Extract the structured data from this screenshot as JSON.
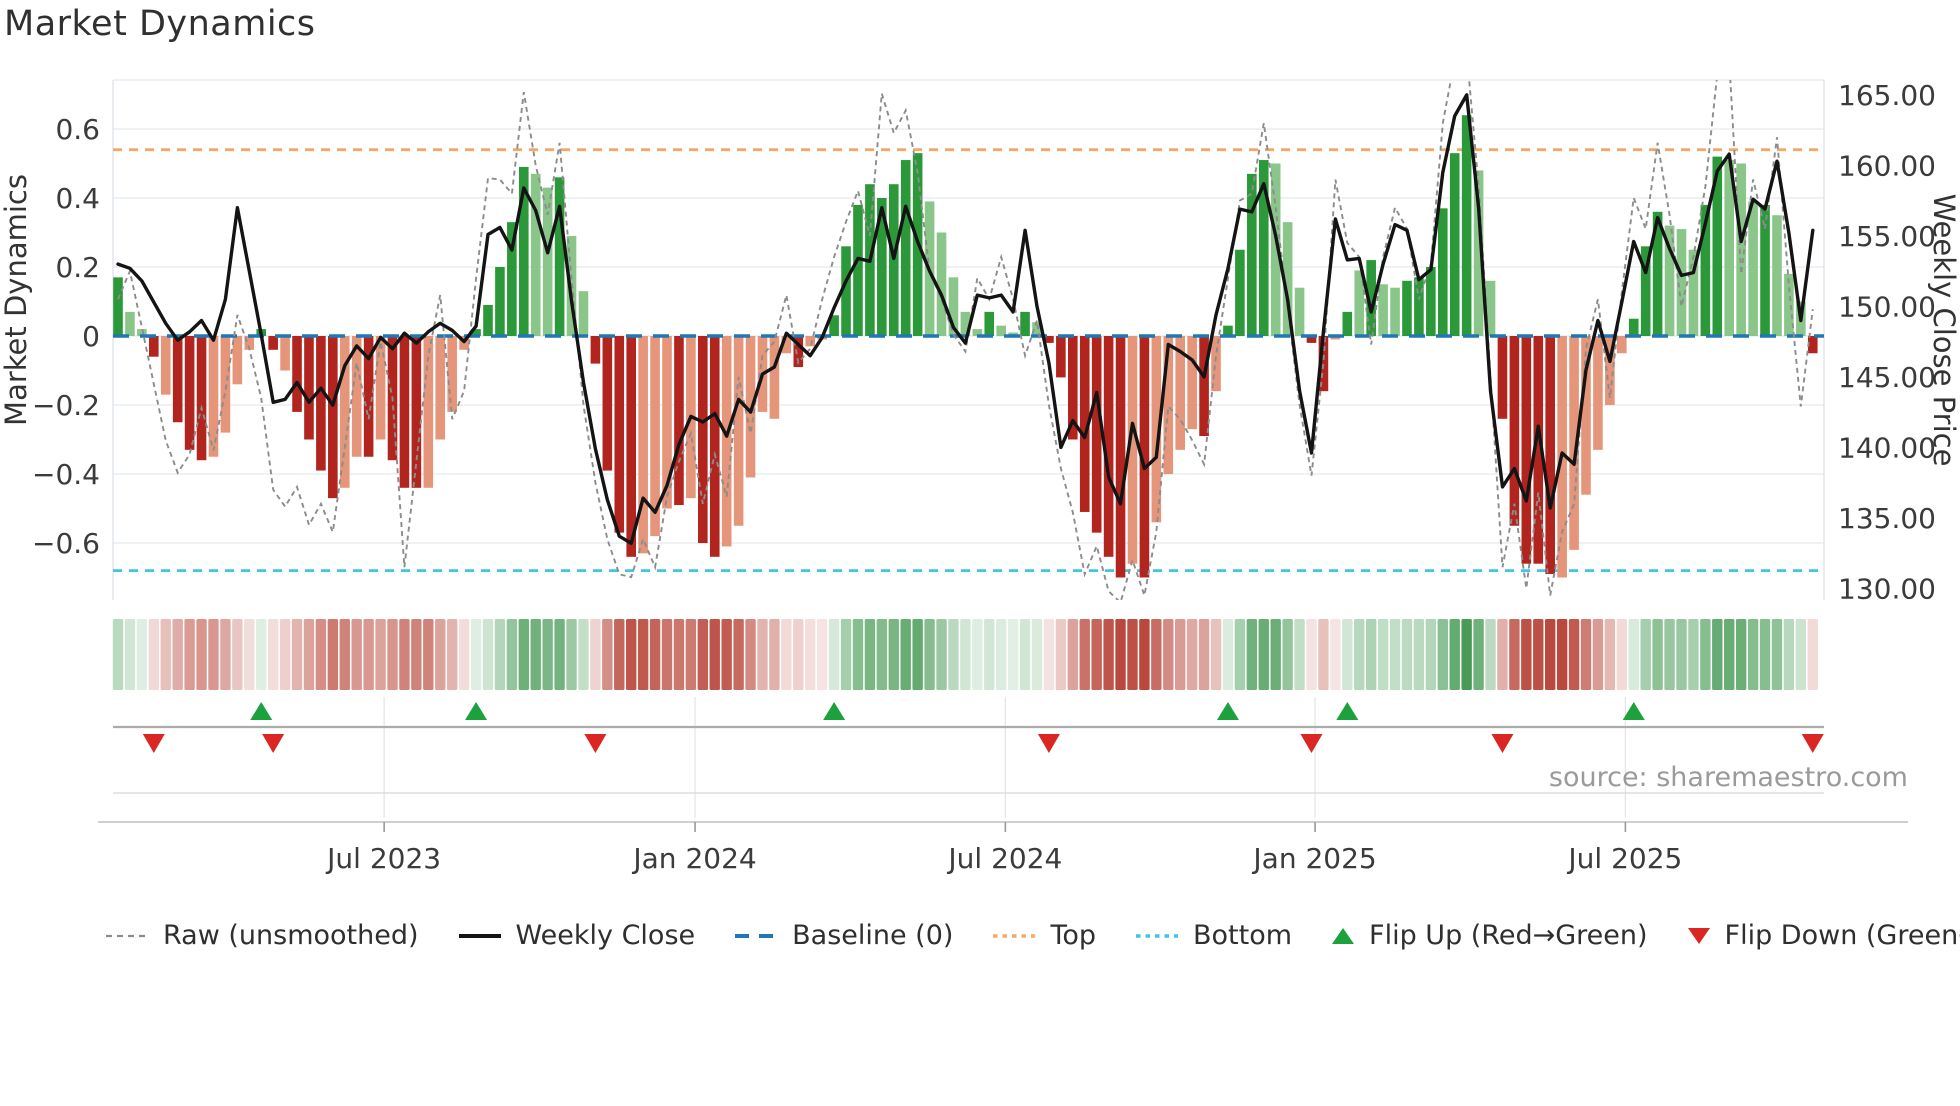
{
  "chart_data": {
    "type": "bar",
    "title": "Market Dynamics",
    "ylabel_left": "Market Dynamics",
    "ylabel_right": "Weekly Close Price",
    "source": "source: sharemaestro.com",
    "x_tick_labels": [
      "Jul 2023",
      "Jan 2024",
      "Jul 2024",
      "Jan 2025",
      "Jul 2025"
    ],
    "x_tick_weeks": [
      22.3,
      48.35,
      74.35,
      100.3,
      126.3
    ],
    "y_ticks_left": [
      0.6,
      0.4,
      0.2,
      0,
      -0.2,
      -0.4,
      -0.6
    ],
    "y_tick_labels_left": [
      "0.6",
      "0.4",
      "0.2",
      "0",
      "−0.2",
      "−0.4",
      "−0.6"
    ],
    "y_ticks_right": [
      165,
      160,
      155,
      150,
      145,
      140,
      135,
      130
    ],
    "y_tick_labels_right": [
      "165.00",
      "160.00",
      "155.00",
      "150.00",
      "145.00",
      "140.00",
      "135.00",
      "130.00"
    ],
    "baseline": 0,
    "top_line": 0.54,
    "bottom_line": -0.68,
    "left_axis_range": [
      -0.75,
      0.75
    ],
    "right_axis_range": [
      129.2,
      166.1
    ],
    "weeks": 143,
    "oscillator": [
      0.17,
      0.07,
      0.02,
      -0.06,
      -0.17,
      -0.25,
      -0.33,
      -0.36,
      -0.35,
      -0.28,
      -0.14,
      -0.04,
      0.02,
      -0.04,
      -0.1,
      -0.22,
      -0.3,
      -0.39,
      -0.47,
      -0.44,
      -0.35,
      -0.35,
      -0.3,
      -0.36,
      -0.44,
      -0.44,
      -0.44,
      -0.3,
      -0.22,
      -0.04,
      0.02,
      0.09,
      0.2,
      0.33,
      0.49,
      0.47,
      0.43,
      0.46,
      0.29,
      0.13,
      -0.08,
      -0.39,
      -0.57,
      -0.64,
      -0.63,
      -0.58,
      -0.5,
      -0.49,
      -0.47,
      -0.6,
      -0.64,
      -0.61,
      -0.55,
      -0.41,
      -0.22,
      -0.24,
      -0.05,
      -0.09,
      -0.03,
      -0.01,
      0.06,
      0.26,
      0.38,
      0.44,
      0.4,
      0.44,
      0.51,
      0.53,
      0.39,
      0.3,
      0.17,
      0.07,
      0.02,
      0.07,
      0.03,
      0.01,
      0.07,
      0.04,
      -0.02,
      -0.12,
      -0.3,
      -0.51,
      -0.57,
      -0.64,
      -0.7,
      -0.66,
      -0.7,
      -0.54,
      -0.4,
      -0.33,
      -0.27,
      -0.29,
      -0.16,
      0.03,
      0.25,
      0.47,
      0.51,
      0.5,
      0.33,
      0.14,
      -0.02,
      -0.16,
      -0.01,
      0.07,
      0.19,
      0.22,
      0.15,
      0.14,
      0.16,
      0.17,
      0.2,
      0.37,
      0.53,
      0.64,
      0.48,
      0.16,
      -0.24,
      -0.55,
      -0.66,
      -0.66,
      -0.69,
      -0.7,
      -0.62,
      -0.46,
      -0.33,
      -0.2,
      -0.05,
      0.05,
      0.26,
      0.36,
      0.32,
      0.31,
      0.25,
      0.38,
      0.52,
      0.51,
      0.5,
      0.39,
      0.38,
      0.35,
      0.18,
      0.1,
      -0.05
    ],
    "bar_shade": "dllDSDDDSSSSdDSDDDDSSDSDDDSSSSdddddlldllDDDDSSSDSDDSSSSSSDSSddddddddllllldlldlDDDDDDDSDSSSSDSddddlllDDSdldllddddddllDDDDDSSSSSSdddlllddllldlllD",
    "shade_key": {
      "d": "green_dark",
      "l": "green_light",
      "D": "red_dark",
      "S": "salmon"
    },
    "weekly_close": [
      153.0,
      152.7,
      151.8,
      150.3,
      148.8,
      147.6,
      148.2,
      149.0,
      147.6,
      150.5,
      157.0,
      152.5,
      148.0,
      143.2,
      143.4,
      144.6,
      143.2,
      144.2,
      143.0,
      145.8,
      147.2,
      146.3,
      147.8,
      147.0,
      148.1,
      147.4,
      148.2,
      148.8,
      148.3,
      147.5,
      148.6,
      155.1,
      155.6,
      154.0,
      158.4,
      156.8,
      153.8,
      157.1,
      150.4,
      144.6,
      139.9,
      136.3,
      133.7,
      133.2,
      136.4,
      135.4,
      137.3,
      140.2,
      142.2,
      141.8,
      142.4,
      140.8,
      143.4,
      142.5,
      145.2,
      145.7,
      148.1,
      147.3,
      146.5,
      147.8,
      149.9,
      151.8,
      153.4,
      153.2,
      157.0,
      153.4,
      157.1,
      154.6,
      152.5,
      150.8,
      148.5,
      147.4,
      150.8,
      150.6,
      150.8,
      149.6,
      155.4,
      150.0,
      146.0,
      140.0,
      141.9,
      140.7,
      143.9,
      137.9,
      136.0,
      141.7,
      138.5,
      139.3,
      147.3,
      146.8,
      146.2,
      145.0,
      149.4,
      152.7,
      156.9,
      156.7,
      158.7,
      155.0,
      150.5,
      144.0,
      139.6,
      148.2,
      156.2,
      153.3,
      153.4,
      149.6,
      153.0,
      155.8,
      155.4,
      151.9,
      152.6,
      159.5,
      163.5,
      165.0,
      157.0,
      144.0,
      137.2,
      138.5,
      136.2,
      141.5,
      135.7,
      139.6,
      138.8,
      145.5,
      149.0,
      146.1,
      150.3,
      154.6,
      152.4,
      156.3,
      154.1,
      152.2,
      152.4,
      155.9,
      159.6,
      160.8,
      154.6,
      157.6,
      156.9,
      160.3,
      155.2,
      149.0,
      155.4
    ],
    "raw_unsmoothed": [
      150.5,
      152.5,
      148.5,
      144.5,
      140.5,
      138.2,
      139.5,
      142.8,
      139.8,
      144.0,
      149.4,
      147.0,
      143.5,
      137.0,
      135.8,
      137.2,
      134.5,
      136.0,
      134.0,
      140.0,
      146.0,
      142.0,
      147.5,
      143.5,
      131.5,
      139.0,
      146.5,
      150.8,
      142.0,
      144.0,
      152.0,
      159.1,
      159.0,
      158.0,
      165.2,
      160.0,
      156.5,
      161.6,
      152.0,
      143.0,
      137.5,
      133.5,
      131.0,
      130.8,
      133.5,
      131.5,
      136.5,
      139.0,
      141.0,
      136.0,
      139.5,
      136.5,
      145.0,
      141.0,
      146.5,
      147.5,
      150.8,
      146.0,
      147.0,
      150.5,
      153.5,
      156.0,
      158.2,
      155.0,
      165.1,
      162.3,
      163.9,
      159.5,
      152.5,
      150.5,
      148.0,
      146.8,
      152.0,
      150.5,
      153.5,
      150.5,
      146.5,
      149.0,
      143.0,
      138.5,
      135.4,
      131.0,
      133.0,
      129.8,
      129.0,
      132.0,
      129.5,
      134.0,
      142.9,
      142.0,
      140.5,
      138.8,
      146.5,
      152.0,
      157.5,
      158.0,
      163.0,
      157.0,
      150.0,
      143.0,
      138.0,
      146.0,
      159.0,
      154.5,
      153.5,
      147.3,
      153.5,
      157.0,
      155.5,
      150.5,
      153.0,
      163.0,
      167.5,
      168.0,
      158.5,
      145.0,
      131.5,
      136.0,
      130.0,
      136.8,
      129.5,
      134.0,
      136.0,
      147.0,
      150.5,
      143.5,
      151.0,
      157.7,
      155.5,
      161.6,
      156.5,
      150.0,
      153.5,
      158.5,
      166.5,
      167.5,
      152.3,
      159.0,
      155.5,
      162.0,
      151.5,
      142.9,
      149.8
    ],
    "flip_up_weeks": [
      12,
      30,
      60,
      93,
      103,
      127
    ],
    "flip_down_weeks": [
      3,
      13,
      40,
      78,
      100,
      116,
      142
    ],
    "legend": [
      {
        "label": "Raw (unsmoothed)",
        "swatch": "dash-gray"
      },
      {
        "label": "Weekly Close",
        "swatch": "solid-black"
      },
      {
        "label": "Baseline (0)",
        "swatch": "dash-blue"
      },
      {
        "label": "Top",
        "swatch": "dot-orange"
      },
      {
        "label": "Bottom",
        "swatch": "dot-cyan"
      },
      {
        "label": "Flip Up (Red→Green)",
        "swatch": "tri-up-green"
      },
      {
        "label": "Flip Down (Green→Red)",
        "swatch": "tri-down-red"
      }
    ],
    "colors": {
      "green_dark": "#2b9939",
      "green_light": "#8ac68a",
      "red_dark": "#b2251f",
      "salmon": "#e59579",
      "close_line": "#141414",
      "raw_line": "#8c8c8c",
      "baseline": "#1f77b4",
      "top_line": "#f3a963",
      "bottom_line": "#3fc6e4",
      "flip_up": "#1ca13c",
      "flip_down": "#da2723",
      "heat_green_rgb": "58,148,74",
      "heat_red_rgb": "186,72,60",
      "grid": "#e9edf2",
      "plot_border": "#dde1e7",
      "axis_text": "#3b3b3b",
      "title_text": "#303030",
      "source_text": "#9a9a9a"
    }
  }
}
